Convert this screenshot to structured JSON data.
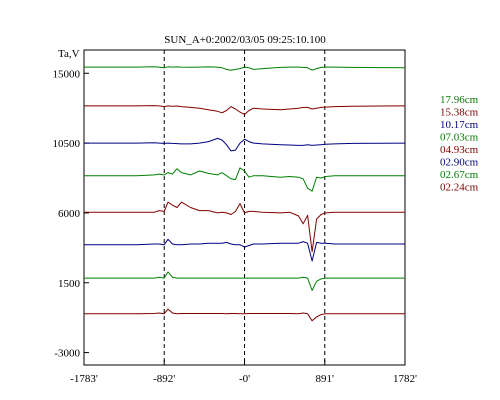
{
  "chart_data": {
    "type": "line",
    "title": "SUN_A+0:2002/03/05 09:25:10.100",
    "ylabel": "Ta,V",
    "xlabel": "",
    "xlim": [
      -1783,
      1782
    ],
    "ylim": [
      -3800,
      16500
    ],
    "x_ticks": [
      {
        "value": -1783,
        "label": "-1783'"
      },
      {
        "value": -892,
        "label": "-892'"
      },
      {
        "value": 0,
        "label": "-0'"
      },
      {
        "value": 891,
        "label": "891'"
      },
      {
        "value": 1782,
        "label": "1782'"
      }
    ],
    "y_ticks": [
      {
        "value": 15000,
        "label": "15000"
      },
      {
        "value": 10500,
        "label": "10500"
      },
      {
        "value": 6000,
        "label": "6000"
      },
      {
        "value": 1500,
        "label": "1500"
      },
      {
        "value": -3000,
        "label": "-3000"
      }
    ],
    "vertical_dashed_lines": [
      -892,
      0,
      891
    ],
    "grid": false,
    "legend_position": "right",
    "x": [
      -1783,
      -1200,
      -1000,
      -950,
      -892,
      -850,
      -800,
      -750,
      -700,
      -600,
      -500,
      -400,
      -300,
      -250,
      -200,
      -150,
      -100,
      -50,
      0,
      50,
      100,
      200,
      400,
      500,
      600,
      650,
      700,
      750,
      800,
      850,
      900,
      1000,
      1200,
      1782
    ],
    "series": [
      {
        "name": "17.96cm",
        "color": "#008000",
        "values": [
          15400,
          15400,
          15420,
          15400,
          15350,
          15420,
          15400,
          15410,
          15400,
          15390,
          15400,
          15410,
          15400,
          15350,
          15250,
          15200,
          15250,
          15300,
          15400,
          15350,
          15250,
          15300,
          15380,
          15400,
          15400,
          15380,
          15350,
          15200,
          15300,
          15380,
          15400,
          15400,
          15380,
          15350
        ]
      },
      {
        "name": "15.38cm",
        "color": "#800000",
        "values": [
          12900,
          12900,
          12920,
          12900,
          12850,
          12900,
          12880,
          12890,
          12850,
          12800,
          12750,
          12650,
          12550,
          12450,
          12600,
          12850,
          12700,
          12500,
          12350,
          12600,
          12750,
          12700,
          12650,
          12700,
          12750,
          12800,
          12800,
          12700,
          12750,
          12800,
          12820,
          12850,
          12880,
          12900
        ]
      },
      {
        "name": "10.17cm",
        "color": "#000080",
        "values": [
          10500,
          10500,
          10520,
          10500,
          10480,
          10500,
          10480,
          10470,
          10450,
          10450,
          10500,
          10600,
          10800,
          10700,
          10400,
          10000,
          10050,
          10500,
          10750,
          10600,
          10500,
          10450,
          10400,
          10380,
          10350,
          10350,
          10400,
          10350,
          10380,
          10400,
          10420,
          10450,
          10480,
          10500
        ]
      },
      {
        "name": "07.03cm",
        "color": "#008000",
        "values": [
          8400,
          8400,
          8450,
          8500,
          8450,
          8600,
          8500,
          8850,
          8600,
          8450,
          8700,
          8550,
          8450,
          8600,
          8400,
          8200,
          8150,
          8900,
          8700,
          8300,
          8400,
          8400,
          8300,
          8350,
          8300,
          8200,
          7600,
          7400,
          8300,
          8250,
          8350,
          8400,
          8400,
          8400
        ]
      },
      {
        "name": "04.93cm",
        "color": "#800000",
        "values": [
          6050,
          6050,
          6050,
          6150,
          6100,
          6700,
          6500,
          6350,
          6700,
          6350,
          6150,
          6150,
          6000,
          6050,
          6000,
          5900,
          6100,
          6600,
          6000,
          6100,
          6100,
          6050,
          6000,
          6050,
          5800,
          5300,
          5850,
          3500,
          5600,
          5900,
          6000,
          6050,
          6050,
          6050
        ]
      },
      {
        "name": "02.90cm",
        "color": "#000080",
        "values": [
          3950,
          3950,
          4000,
          4000,
          3950,
          4300,
          4000,
          3950,
          3950,
          4000,
          4000,
          4050,
          4050,
          4050,
          4100,
          4000,
          3950,
          3950,
          3800,
          3900,
          4000,
          4000,
          4050,
          4050,
          4050,
          4150,
          4050,
          2900,
          4100,
          4050,
          4050,
          4000,
          4000,
          4000
        ]
      },
      {
        "name": "02.67cm",
        "color": "#008000",
        "values": [
          1800,
          1800,
          1800,
          1850,
          1800,
          2200,
          1850,
          1800,
          1800,
          1800,
          1800,
          1800,
          1800,
          1800,
          1800,
          1800,
          1800,
          1800,
          1800,
          1800,
          1800,
          1800,
          1800,
          1800,
          1800,
          1850,
          1800,
          1000,
          1600,
          1750,
          1800,
          1800,
          1800,
          1800
        ]
      },
      {
        "name": "02.24cm",
        "color": "#800000",
        "values": [
          -500,
          -500,
          -480,
          -450,
          -500,
          -200,
          -450,
          -500,
          -480,
          -480,
          -480,
          -480,
          -480,
          -480,
          -500,
          -480,
          -480,
          -500,
          -500,
          -480,
          -480,
          -480,
          -480,
          -480,
          -500,
          -450,
          -500,
          -950,
          -700,
          -550,
          -500,
          -500,
          -500,
          -500
        ]
      }
    ]
  }
}
